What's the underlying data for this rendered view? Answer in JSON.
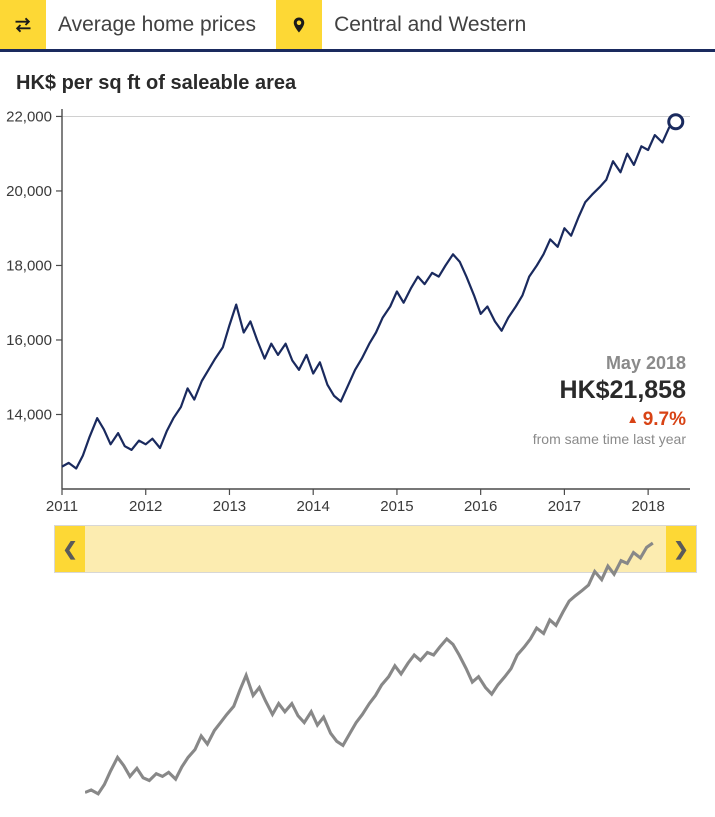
{
  "header": {
    "metric_label": "Average home prices",
    "region_label": "Central and Western"
  },
  "chart": {
    "type": "line",
    "title": "HK$ per sq ft of saleable area",
    "x_years": [
      2011,
      2012,
      2013,
      2014,
      2015,
      2016,
      2017,
      2018
    ],
    "xlim": [
      2011,
      2018.5
    ],
    "ylim": [
      12000,
      22200
    ],
    "yticks": [
      14000,
      16000,
      18000,
      20000,
      22000
    ],
    "ytick_labels": [
      "14,000",
      "16,000",
      "18,000",
      "20,000",
      "22,000"
    ],
    "line_color": "#1a2a5e",
    "line_width": 2.2,
    "axis_color": "#4a4a4a",
    "grid_color": "#d0d0d0",
    "tick_font_size": 15,
    "title_font_size": 20,
    "last_point_marker": {
      "shape": "circle",
      "stroke": "#1a2a5e",
      "fill": "#ffffff",
      "r": 7
    },
    "series": [
      [
        2011.0,
        12600
      ],
      [
        2011.08,
        12700
      ],
      [
        2011.17,
        12550
      ],
      [
        2011.25,
        12900
      ],
      [
        2011.33,
        13400
      ],
      [
        2011.42,
        13900
      ],
      [
        2011.5,
        13600
      ],
      [
        2011.58,
        13200
      ],
      [
        2011.67,
        13500
      ],
      [
        2011.75,
        13150
      ],
      [
        2011.83,
        13050
      ],
      [
        2011.92,
        13300
      ],
      [
        2012.0,
        13200
      ],
      [
        2012.08,
        13350
      ],
      [
        2012.17,
        13100
      ],
      [
        2012.25,
        13550
      ],
      [
        2012.33,
        13900
      ],
      [
        2012.42,
        14200
      ],
      [
        2012.5,
        14700
      ],
      [
        2012.58,
        14400
      ],
      [
        2012.67,
        14900
      ],
      [
        2012.75,
        15200
      ],
      [
        2012.83,
        15500
      ],
      [
        2012.92,
        15800
      ],
      [
        2013.0,
        16400
      ],
      [
        2013.08,
        16950
      ],
      [
        2013.17,
        16200
      ],
      [
        2013.25,
        16500
      ],
      [
        2013.33,
        16000
      ],
      [
        2013.42,
        15500
      ],
      [
        2013.5,
        15900
      ],
      [
        2013.58,
        15600
      ],
      [
        2013.67,
        15900
      ],
      [
        2013.75,
        15450
      ],
      [
        2013.83,
        15200
      ],
      [
        2013.92,
        15600
      ],
      [
        2014.0,
        15100
      ],
      [
        2014.08,
        15400
      ],
      [
        2014.17,
        14800
      ],
      [
        2014.25,
        14500
      ],
      [
        2014.33,
        14350
      ],
      [
        2014.42,
        14800
      ],
      [
        2014.5,
        15200
      ],
      [
        2014.58,
        15500
      ],
      [
        2014.67,
        15900
      ],
      [
        2014.75,
        16200
      ],
      [
        2014.83,
        16600
      ],
      [
        2014.92,
        16900
      ],
      [
        2015.0,
        17300
      ],
      [
        2015.08,
        17000
      ],
      [
        2015.17,
        17400
      ],
      [
        2015.25,
        17700
      ],
      [
        2015.33,
        17500
      ],
      [
        2015.42,
        17800
      ],
      [
        2015.5,
        17700
      ],
      [
        2015.58,
        18000
      ],
      [
        2015.67,
        18300
      ],
      [
        2015.75,
        18100
      ],
      [
        2015.83,
        17700
      ],
      [
        2015.92,
        17200
      ],
      [
        2016.0,
        16700
      ],
      [
        2016.08,
        16900
      ],
      [
        2016.17,
        16500
      ],
      [
        2016.25,
        16250
      ],
      [
        2016.33,
        16600
      ],
      [
        2016.42,
        16900
      ],
      [
        2016.5,
        17200
      ],
      [
        2016.58,
        17700
      ],
      [
        2016.67,
        18000
      ],
      [
        2016.75,
        18300
      ],
      [
        2016.83,
        18700
      ],
      [
        2016.92,
        18500
      ],
      [
        2017.0,
        19000
      ],
      [
        2017.08,
        18800
      ],
      [
        2017.17,
        19300
      ],
      [
        2017.25,
        19700
      ],
      [
        2017.33,
        19900
      ],
      [
        2017.42,
        20100
      ],
      [
        2017.5,
        20300
      ],
      [
        2017.58,
        20800
      ],
      [
        2017.67,
        20500
      ],
      [
        2017.75,
        21000
      ],
      [
        2017.83,
        20700
      ],
      [
        2017.92,
        21200
      ],
      [
        2018.0,
        21100
      ],
      [
        2018.08,
        21500
      ],
      [
        2018.17,
        21300
      ],
      [
        2018.25,
        21700
      ],
      [
        2018.33,
        21858
      ]
    ]
  },
  "callout": {
    "date": "May 2018",
    "price": "HK$21,858",
    "pct": "9.7%",
    "pct_direction": "up",
    "pct_color": "#d84315",
    "note": "from same time last year"
  },
  "brush": {
    "bg_color": "#fcecb0",
    "handle_color": "#fdd835",
    "mini_line_color": "#888888"
  }
}
